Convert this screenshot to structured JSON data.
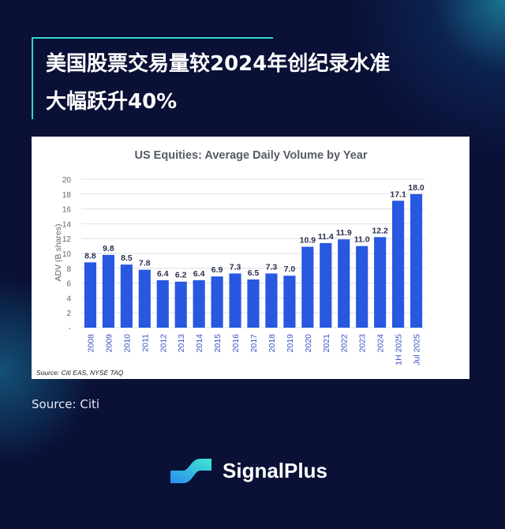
{
  "headline": {
    "line1": "美国股票交易量较2024年创纪录水准",
    "line2": "大幅跃升40%"
  },
  "chart_data": {
    "type": "bar",
    "title": "US Equities:  Average Daily Volume by Year",
    "ylabel": "ADV (B shares)",
    "xlabel": "",
    "ylim": [
      0,
      20
    ],
    "yticks": [
      "-",
      "2",
      "4",
      "6",
      "8",
      "10",
      "12",
      "14",
      "16",
      "18",
      "20"
    ],
    "grid": true,
    "categories": [
      "2008",
      "2009",
      "2010",
      "2011",
      "2012",
      "2013",
      "2014",
      "2015",
      "2016",
      "2017",
      "2018",
      "2019",
      "2020",
      "2021",
      "2022",
      "2023",
      "2024",
      "1H 2025",
      "Jul 2025"
    ],
    "values": [
      8.8,
      9.8,
      8.5,
      7.8,
      6.4,
      6.2,
      6.4,
      6.9,
      7.3,
      6.5,
      7.3,
      7.0,
      10.9,
      11.4,
      11.9,
      11.0,
      12.2,
      17.1,
      18.0
    ],
    "data_labels": [
      "8.8",
      "9.8",
      "8.5",
      "7.8",
      "6.4",
      "6.2",
      "6.4",
      "6.9",
      "7.3",
      "6.5",
      "7.3",
      "7.0",
      "10.9",
      "11.4",
      "11.9",
      "11.0",
      "12.2",
      "17.1",
      "18.0"
    ],
    "bar_color": "#2857e0",
    "source_note": "Source: Citi EAS, NYSE TAQ"
  },
  "source": "Source: Citi",
  "brand": {
    "name": "SignalPlus",
    "accent": "#2fd6d0"
  }
}
